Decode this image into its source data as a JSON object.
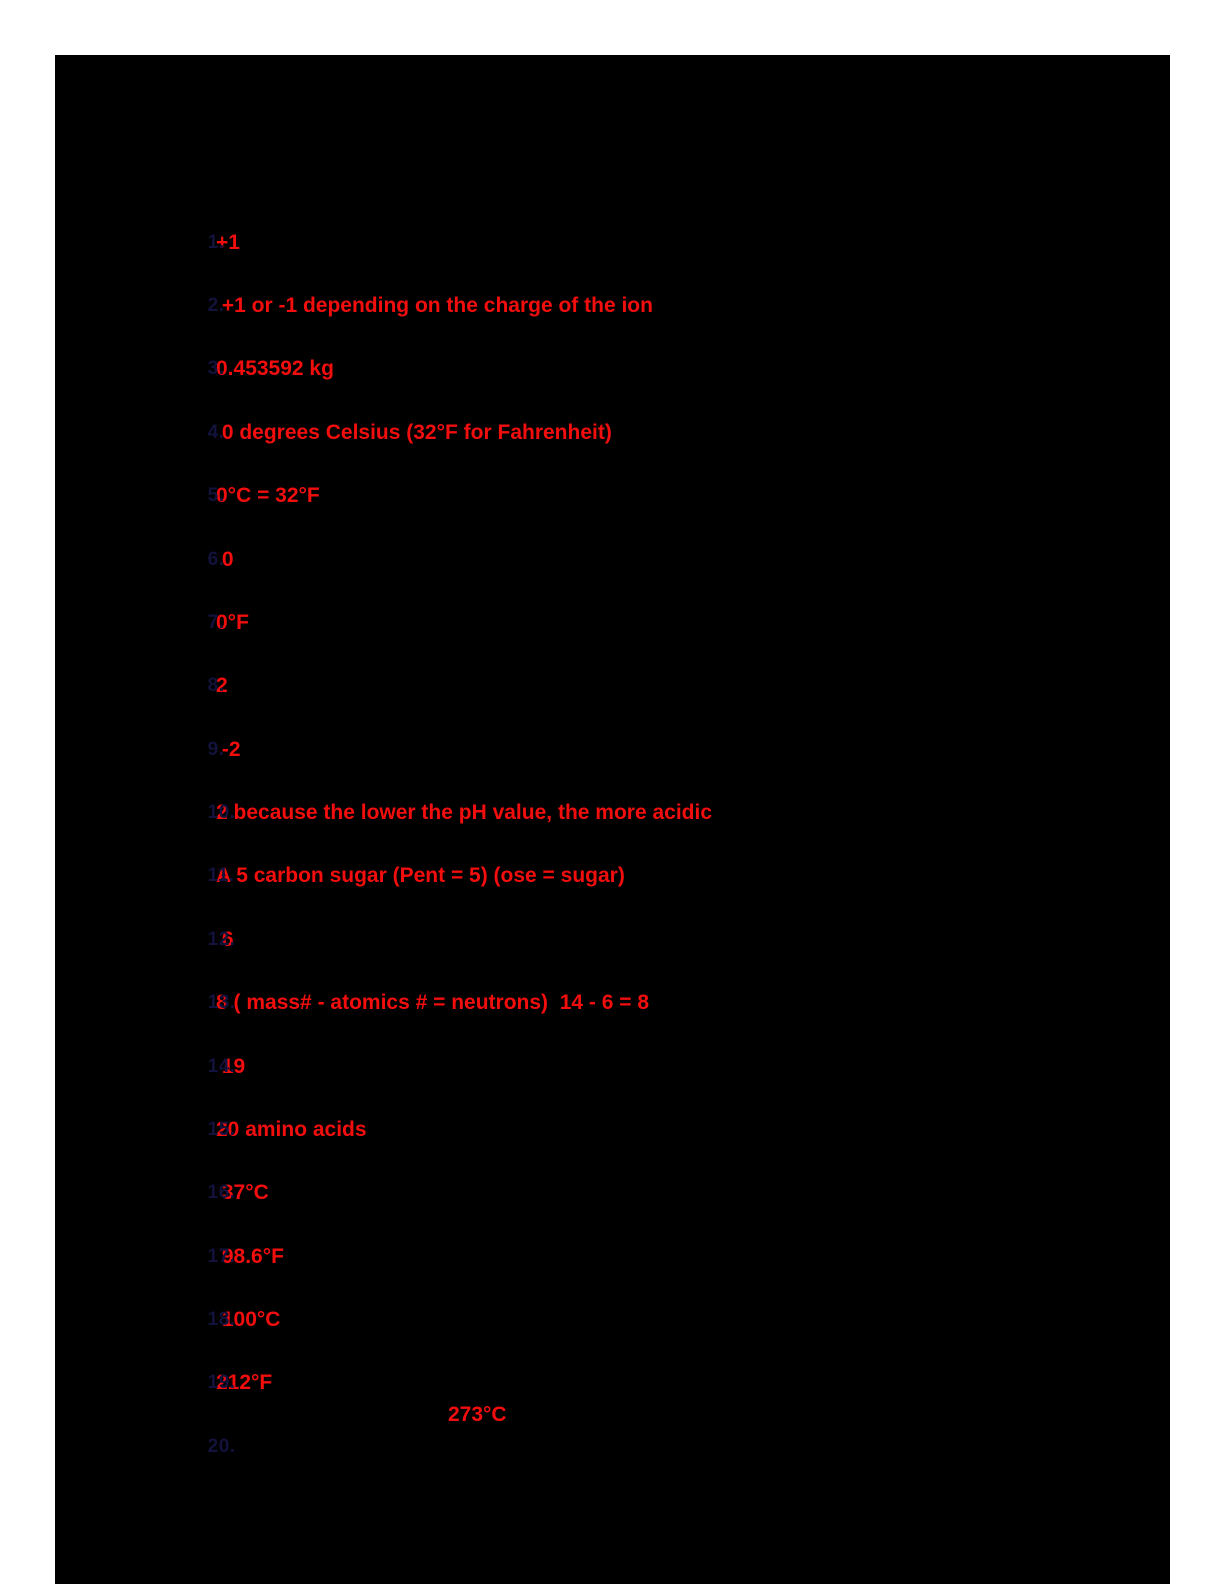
{
  "document": {
    "type": "question-answer-review-sheet",
    "visible_title": ""
  },
  "colors": {
    "page_bg": "#000000",
    "canvas_bg": "#ffffff",
    "answer_red": "#f30e0e",
    "number_navy": "#12123c"
  },
  "items": [
    {
      "number": "1.",
      "answer": "+1",
      "inline": false
    },
    {
      "number": "2.",
      "answer": " +1 or -1 depending on the charge of the ion",
      "inline": false
    },
    {
      "number": "3.",
      "answer": "0.453592 kg",
      "inline": false
    },
    {
      "number": "4.",
      "answer": " 0 degrees Celsius (32°F for Fahrenheit)",
      "inline": false
    },
    {
      "number": "5.",
      "answer": "0°C = 32°F",
      "inline": false
    },
    {
      "number": "6.",
      "answer": " 0",
      "inline": false
    },
    {
      "number": "7.",
      "answer": "0°F",
      "inline": false
    },
    {
      "number": "8.",
      "answer": "2",
      "inline": false
    },
    {
      "number": "9.",
      "answer": " -2",
      "inline": false
    },
    {
      "number": "10.",
      "answer": "2 because the lower the pH value, the more acidic",
      "inline": false
    },
    {
      "number": "11.",
      "answer": "A 5 carbon sugar (Pent = 5) (ose = sugar)",
      "inline": false
    },
    {
      "number": "12.",
      "answer": " 6",
      "inline": false
    },
    {
      "number": "13.",
      "answer": "8 ( mass# - atomics # = neutrons)  14 - 6 = 8",
      "inline": false
    },
    {
      "number": "14.",
      "answer": " 19",
      "inline": false
    },
    {
      "number": "15.",
      "answer": "20 amino acids",
      "inline": false
    },
    {
      "number": "16.",
      "answer": " 37°C",
      "inline": false
    },
    {
      "number": "17.",
      "answer": " 98.6°F",
      "inline": false
    },
    {
      "number": "18.",
      "answer": " 100°C",
      "inline": false
    },
    {
      "number": "19.",
      "answer": "212°F",
      "inline": false
    },
    {
      "number": "20.",
      "answer": "273°C",
      "inline": true
    }
  ]
}
